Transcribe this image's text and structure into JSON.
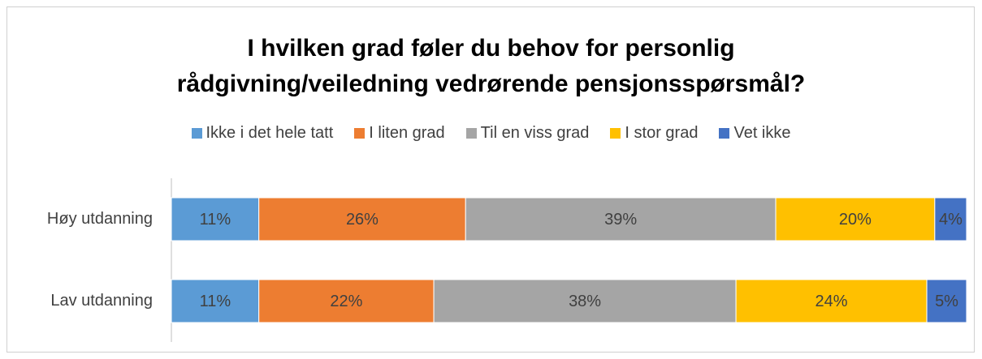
{
  "chart_data": {
    "type": "stacked-bar-horizontal",
    "title": "I hvilken grad føler du behov for personlig rådgivning/veiledning vedrørende pensjonsspørsmål?",
    "categories": [
      "Høy utdanning",
      "Lav utdanning"
    ],
    "series": [
      {
        "name": "Ikke i det hele tatt",
        "color": "#5b9bd5",
        "values": [
          11,
          11
        ],
        "value_labels": [
          "11%",
          "11%"
        ]
      },
      {
        "name": "I liten grad",
        "color": "#ed7d31",
        "values": [
          26,
          22
        ],
        "value_labels": [
          "26%",
          "22%"
        ]
      },
      {
        "name": "Til en viss grad",
        "color": "#a5a5a5",
        "values": [
          39,
          38
        ],
        "value_labels": [
          "39%",
          "38%"
        ]
      },
      {
        "name": "I stor grad",
        "color": "#ffc000",
        "values": [
          20,
          24
        ],
        "value_labels": [
          "20%",
          "24%"
        ]
      },
      {
        "name": "Vet ikke",
        "color": "#4472c4",
        "values": [
          4,
          5
        ],
        "value_labels": [
          "4%",
          "5%"
        ]
      }
    ],
    "xlim": [
      0,
      100
    ],
    "legend": "top"
  }
}
